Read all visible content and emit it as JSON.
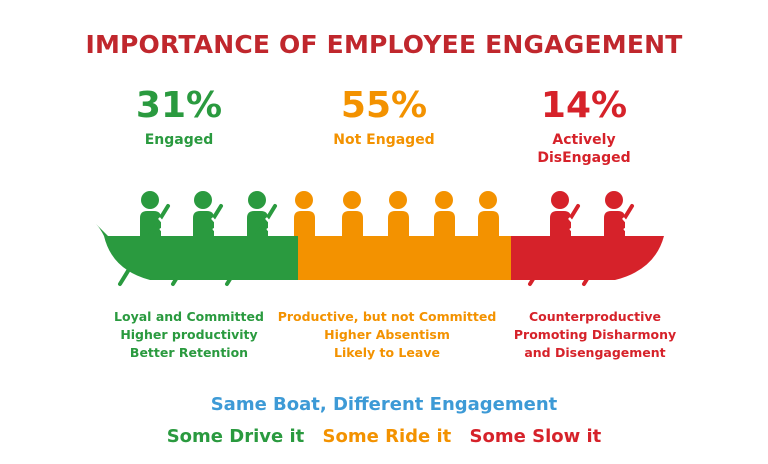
{
  "title": "IMPORTANCE OF EMPLOYEE ENGAGEMENT",
  "colors": {
    "title": "#c0272d",
    "engaged": "#2a9a3f",
    "not_engaged": "#f39200",
    "disengaged": "#d6222a",
    "tagline": "#3d9ad6"
  },
  "groups": [
    {
      "percent": "31%",
      "label": [
        "Engaged"
      ],
      "description": [
        "Loyal and Committed",
        "Higher productivity",
        "Better Retention"
      ]
    },
    {
      "percent": "55%",
      "label": [
        "Not Engaged"
      ],
      "description": [
        "Productive, but not Committed",
        "Higher Absentism",
        "Likely to Leave"
      ]
    },
    {
      "percent": "14%",
      "label": [
        "Actively",
        "DisEngaged"
      ],
      "description": [
        "Counterproductive",
        "Promoting Disharmony",
        "and Disengagement"
      ]
    }
  ],
  "tagline": "Same Boat, Different Engagement",
  "bottom_line": [
    "Some Drive it",
    "Some Ride it",
    "Some Slow it"
  ]
}
